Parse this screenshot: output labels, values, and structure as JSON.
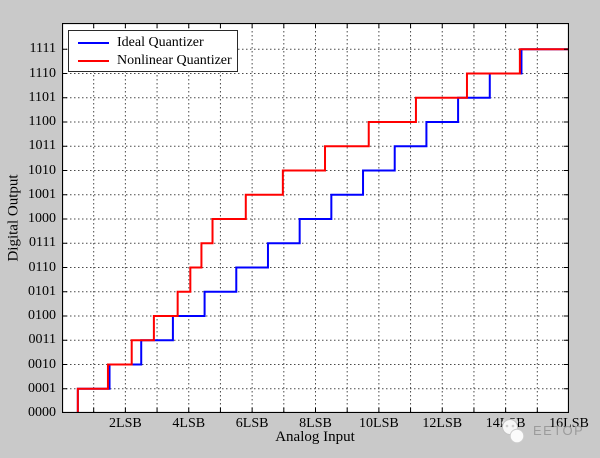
{
  "window": {
    "background_color": "#c9c9c9"
  },
  "chart_data": {
    "type": "line",
    "subtype": "staircase_step",
    "title": "",
    "xlabel": "Analog Input",
    "ylabel": "Digital Output",
    "x_range_lsb": [
      0,
      16
    ],
    "y_range_levels": [
      0,
      16.08
    ],
    "grid": "dotted",
    "legend_position": "top-left",
    "axis_color": "#000000",
    "grid_color": "#4a4a4a",
    "x_ticks": [
      {
        "value": 2,
        "label": "2LSB"
      },
      {
        "value": 4,
        "label": "4LSB"
      },
      {
        "value": 6,
        "label": "6LSB"
      },
      {
        "value": 8,
        "label": "8LSB"
      },
      {
        "value": 10,
        "label": "10LSB"
      },
      {
        "value": 12,
        "label": "12LSB"
      },
      {
        "value": 14,
        "label": "14LSB"
      },
      {
        "value": 16,
        "label": "16LSB"
      }
    ],
    "y_ticks": [
      {
        "value": 0,
        "label": "0000"
      },
      {
        "value": 1,
        "label": "0001"
      },
      {
        "value": 2,
        "label": "0010"
      },
      {
        "value": 3,
        "label": "0011"
      },
      {
        "value": 4,
        "label": "0100"
      },
      {
        "value": 5,
        "label": "0101"
      },
      {
        "value": 6,
        "label": "0110"
      },
      {
        "value": 7,
        "label": "0111"
      },
      {
        "value": 8,
        "label": "1000"
      },
      {
        "value": 9,
        "label": "1001"
      },
      {
        "value": 10,
        "label": "1010"
      },
      {
        "value": 11,
        "label": "1011"
      },
      {
        "value": 12,
        "label": "1100"
      },
      {
        "value": 13,
        "label": "1101"
      },
      {
        "value": 14,
        "label": "1110"
      },
      {
        "value": 15,
        "label": "1111"
      }
    ],
    "series": [
      {
        "name": "Ideal Quantizer",
        "color": "#0000ff",
        "start_level": 0,
        "end_x_lsb": 16,
        "transition_x_lsb": [
          0.5,
          1.5,
          2.5,
          3.5,
          4.5,
          5.5,
          6.5,
          7.5,
          8.5,
          9.5,
          10.5,
          11.5,
          12.5,
          13.5,
          14.5
        ]
      },
      {
        "name": "Nonlinear Quantizer",
        "color": "#ff0000",
        "start_level": 0,
        "end_x_lsb": 16,
        "transition_x_lsb": [
          0.5,
          1.45,
          2.2,
          2.9,
          3.65,
          4.05,
          4.4,
          4.75,
          5.8,
          6.97,
          8.3,
          9.68,
          11.17,
          12.78,
          14.45
        ]
      }
    ]
  },
  "watermark": {
    "text": "EETOP",
    "color": "#9b9b9b"
  }
}
